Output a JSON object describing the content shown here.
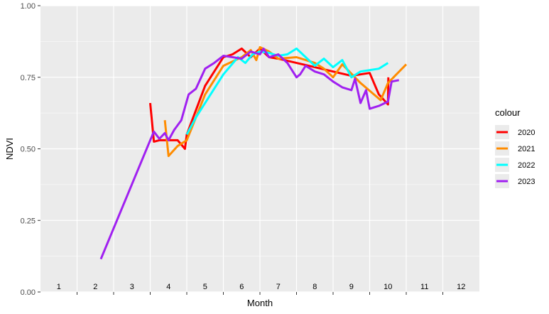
{
  "chart_data": {
    "type": "line",
    "xlabel": "Month",
    "ylabel": "NDVI",
    "xlim": [
      0.5,
      12.5
    ],
    "ylim": [
      0,
      1
    ],
    "y_ticks": [
      0.0,
      0.25,
      0.5,
      0.75,
      1.0
    ],
    "y_tick_labels": [
      "0.00",
      "0.25",
      "0.50",
      "0.75",
      "1.00"
    ],
    "x_month_labels": [
      "1",
      "2",
      "3",
      "4",
      "5",
      "6",
      "7",
      "8",
      "9",
      "10",
      "11",
      "12"
    ],
    "grid": true,
    "panel_background": "#ebebeb",
    "legend": {
      "title": "colour",
      "position": "right",
      "entries": [
        "2020",
        "2021",
        "2022",
        "2023"
      ]
    },
    "series": [
      {
        "name": "2020",
        "color": "#ff0000",
        "points": [
          [
            3.5,
            0.66
          ],
          [
            3.6,
            0.525
          ],
          [
            3.75,
            0.53
          ],
          [
            4.0,
            0.53
          ],
          [
            4.25,
            0.53
          ],
          [
            4.45,
            0.5
          ],
          [
            4.5,
            0.55
          ],
          [
            5.0,
            0.72
          ],
          [
            5.5,
            0.82
          ],
          [
            5.75,
            0.83
          ],
          [
            6.0,
            0.85
          ],
          [
            6.25,
            0.82
          ],
          [
            6.5,
            0.85
          ],
          [
            6.75,
            0.82
          ],
          [
            7.0,
            0.815
          ],
          [
            7.5,
            0.8
          ],
          [
            8.0,
            0.785
          ],
          [
            8.5,
            0.77
          ],
          [
            9.0,
            0.755
          ],
          [
            9.5,
            0.765
          ],
          [
            9.75,
            0.69
          ],
          [
            10.0,
            0.655
          ],
          [
            10.01,
            0.75
          ]
        ]
      },
      {
        "name": "2021",
        "color": "#ff8c00",
        "points": [
          [
            3.9,
            0.6
          ],
          [
            4.0,
            0.475
          ],
          [
            4.25,
            0.51
          ],
          [
            4.5,
            0.53
          ],
          [
            4.75,
            0.61
          ],
          [
            5.0,
            0.69
          ],
          [
            5.5,
            0.79
          ],
          [
            6.0,
            0.82
          ],
          [
            6.25,
            0.845
          ],
          [
            6.4,
            0.81
          ],
          [
            6.5,
            0.855
          ],
          [
            6.75,
            0.84
          ],
          [
            7.0,
            0.815
          ],
          [
            7.5,
            0.82
          ],
          [
            8.0,
            0.8
          ],
          [
            8.25,
            0.78
          ],
          [
            8.5,
            0.75
          ],
          [
            8.75,
            0.795
          ],
          [
            9.25,
            0.73
          ],
          [
            9.8,
            0.67
          ],
          [
            10.0,
            0.73
          ],
          [
            10.5,
            0.795
          ]
        ]
      },
      {
        "name": "2022",
        "color": "#00ffff",
        "points": [
          [
            4.5,
            0.55
          ],
          [
            4.75,
            0.61
          ],
          [
            5.0,
            0.66
          ],
          [
            5.5,
            0.76
          ],
          [
            5.9,
            0.82
          ],
          [
            6.1,
            0.8
          ],
          [
            6.3,
            0.83
          ],
          [
            6.5,
            0.84
          ],
          [
            6.75,
            0.835
          ],
          [
            7.0,
            0.825
          ],
          [
            7.25,
            0.83
          ],
          [
            7.5,
            0.85
          ],
          [
            8.0,
            0.79
          ],
          [
            8.25,
            0.815
          ],
          [
            8.5,
            0.785
          ],
          [
            8.75,
            0.81
          ],
          [
            9.0,
            0.75
          ],
          [
            9.25,
            0.77
          ],
          [
            9.75,
            0.78
          ],
          [
            10.0,
            0.8
          ]
        ]
      },
      {
        "name": "2023",
        "color": "#a020f0",
        "points": [
          [
            2.15,
            0.115
          ],
          [
            3.5,
            0.53
          ],
          [
            3.6,
            0.56
          ],
          [
            3.75,
            0.535
          ],
          [
            3.9,
            0.555
          ],
          [
            4.0,
            0.53
          ],
          [
            4.15,
            0.565
          ],
          [
            4.35,
            0.6
          ],
          [
            4.55,
            0.69
          ],
          [
            4.75,
            0.71
          ],
          [
            5.0,
            0.78
          ],
          [
            5.25,
            0.8
          ],
          [
            5.5,
            0.825
          ],
          [
            5.75,
            0.82
          ],
          [
            6.0,
            0.815
          ],
          [
            6.25,
            0.84
          ],
          [
            6.5,
            0.83
          ],
          [
            6.6,
            0.85
          ],
          [
            6.75,
            0.82
          ],
          [
            7.0,
            0.83
          ],
          [
            7.25,
            0.8
          ],
          [
            7.5,
            0.75
          ],
          [
            7.6,
            0.76
          ],
          [
            7.75,
            0.79
          ],
          [
            8.0,
            0.77
          ],
          [
            8.25,
            0.76
          ],
          [
            8.5,
            0.735
          ],
          [
            8.75,
            0.715
          ],
          [
            9.0,
            0.705
          ],
          [
            9.1,
            0.745
          ],
          [
            9.25,
            0.66
          ],
          [
            9.4,
            0.705
          ],
          [
            9.5,
            0.64
          ],
          [
            9.75,
            0.65
          ],
          [
            10.0,
            0.665
          ],
          [
            10.1,
            0.735
          ],
          [
            10.3,
            0.74
          ]
        ]
      }
    ]
  }
}
